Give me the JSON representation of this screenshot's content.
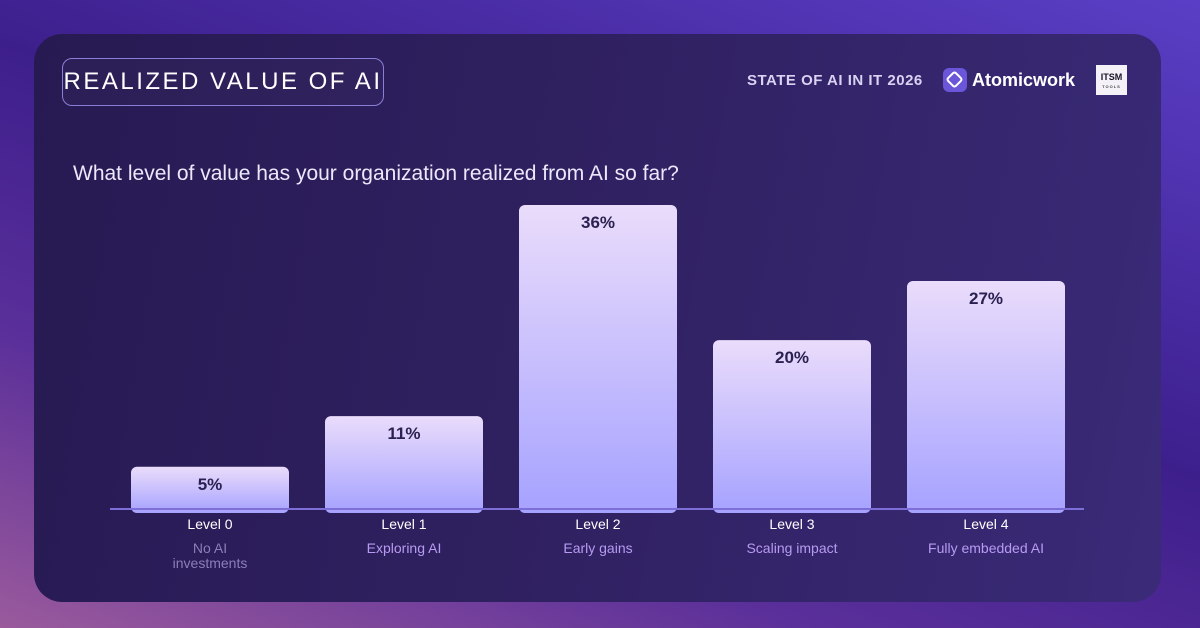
{
  "header": {
    "title": "REALIZED VALUE OF AI",
    "report_label": "STATE OF AI IN IT 2026",
    "brand_name": "Atomicwork",
    "partner_logo_text": "ITSM",
    "partner_logo_sub": "TOOLS",
    "brand_mark_icon": "atomicwork-logo-icon"
  },
  "question": "What level of value has your organization realized from AI so far?",
  "colors": {
    "bar_top": "#eadcfb",
    "bar_bottom": "#a6a2ff",
    "value_label": "#2b2150",
    "level_label": "#ffffff",
    "desc_label_dim": "#8b7fb8",
    "desc_label": "#b79bf2",
    "baseline": "#7e6fd8"
  },
  "chart_data": {
    "type": "bar",
    "title": "What level of value has your organization realized from AI so far?",
    "categories": [
      "Level 0",
      "Level 1",
      "Level 2",
      "Level 3",
      "Level 4"
    ],
    "descriptions": [
      "No AI investments",
      "Exploring AI",
      "Early gains",
      "Scaling impact",
      "Fully embedded AI"
    ],
    "values": [
      5,
      11,
      36,
      20,
      27
    ],
    "value_labels": [
      "5%",
      "11%",
      "36%",
      "20%",
      "27%"
    ],
    "unit": "%",
    "ylim": [
      0,
      40
    ],
    "grid": false,
    "legend": "none"
  }
}
